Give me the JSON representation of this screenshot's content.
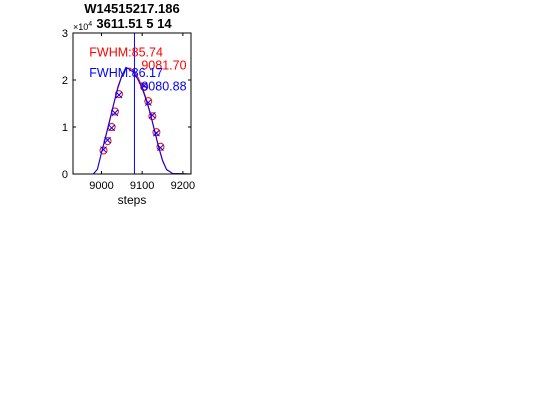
{
  "chart_data": {
    "type": "line",
    "title_lines": [
      "W14515217.186",
      "3611.51 5 14"
    ],
    "xlabel": "steps",
    "ylabel": "",
    "y_exponent_label": "×10",
    "y_exponent_power": "4",
    "xlim": [
      8930,
      9220
    ],
    "ylim": [
      0,
      3
    ],
    "x_ticks": [
      9000,
      9100,
      9200
    ],
    "y_ticks": [
      0,
      1,
      2,
      3
    ],
    "grid": false,
    "series": [
      {
        "color": "#ff0000",
        "curve": [
          [
            8930,
            0
          ],
          [
            8980,
            0
          ],
          [
            8990,
            0.1
          ],
          [
            9000,
            0.45
          ],
          [
            9010,
            0.8
          ],
          [
            9020,
            1.15
          ],
          [
            9030,
            1.5
          ],
          [
            9040,
            1.85
          ],
          [
            9050,
            2.1
          ],
          [
            9060,
            2.25
          ],
          [
            9070,
            2.25
          ],
          [
            9080,
            2.2
          ],
          [
            9090,
            2.05
          ],
          [
            9100,
            1.85
          ],
          [
            9110,
            1.6
          ],
          [
            9120,
            1.3
          ],
          [
            9130,
            0.95
          ],
          [
            9140,
            0.6
          ],
          [
            9150,
            0.3
          ],
          [
            9160,
            0.1
          ],
          [
            9175,
            0.01
          ],
          [
            9220,
            0
          ]
        ],
        "markers": [
          [
            9005,
            0.5
          ],
          [
            9015,
            0.7
          ],
          [
            9025,
            1.0
          ],
          [
            9033,
            1.33
          ],
          [
            9043,
            1.7
          ],
          [
            9105,
            1.85
          ],
          [
            9115,
            1.55
          ],
          [
            9125,
            1.23
          ],
          [
            9135,
            0.89
          ],
          [
            9145,
            0.58
          ]
        ],
        "marker": "circle"
      },
      {
        "color": "#0000ff",
        "curve": [
          [
            8930,
            0
          ],
          [
            8980,
            0
          ],
          [
            8990,
            0.1
          ],
          [
            9000,
            0.45
          ],
          [
            9010,
            0.78
          ],
          [
            9020,
            1.12
          ],
          [
            9030,
            1.48
          ],
          [
            9040,
            1.82
          ],
          [
            9050,
            2.08
          ],
          [
            9060,
            2.27
          ],
          [
            9070,
            2.22
          ],
          [
            9080,
            2.15
          ],
          [
            9090,
            2.0
          ],
          [
            9100,
            1.82
          ],
          [
            9110,
            1.57
          ],
          [
            9120,
            1.28
          ],
          [
            9130,
            0.93
          ],
          [
            9140,
            0.58
          ],
          [
            9150,
            0.28
          ],
          [
            9160,
            0.09
          ],
          [
            9175,
            0.01
          ],
          [
            9220,
            0
          ]
        ],
        "markers": [
          [
            9005,
            0.52
          ],
          [
            9015,
            0.72
          ],
          [
            9025,
            0.98
          ],
          [
            9033,
            1.3
          ],
          [
            9043,
            1.68
          ],
          [
            9105,
            1.88
          ],
          [
            9115,
            1.52
          ],
          [
            9125,
            1.25
          ],
          [
            9135,
            0.87
          ],
          [
            9145,
            0.56
          ]
        ],
        "marker": "x"
      }
    ],
    "vertical_line": {
      "x": 9081,
      "color": "#0000ff"
    },
    "annotations": [
      {
        "text": "FWHM:85.74",
        "color": "#ff0000",
        "x": 8970,
        "y": 2.5
      },
      {
        "text": "9081.70",
        "color": "#ff0000",
        "x": 9098,
        "y": 2.22
      },
      {
        "text": "FWHM:86.17",
        "color": "#0000ff",
        "x": 8970,
        "y": 2.06
      },
      {
        "text": "9080.88",
        "color": "#0000ff",
        "x": 9098,
        "y": 1.78
      }
    ]
  }
}
